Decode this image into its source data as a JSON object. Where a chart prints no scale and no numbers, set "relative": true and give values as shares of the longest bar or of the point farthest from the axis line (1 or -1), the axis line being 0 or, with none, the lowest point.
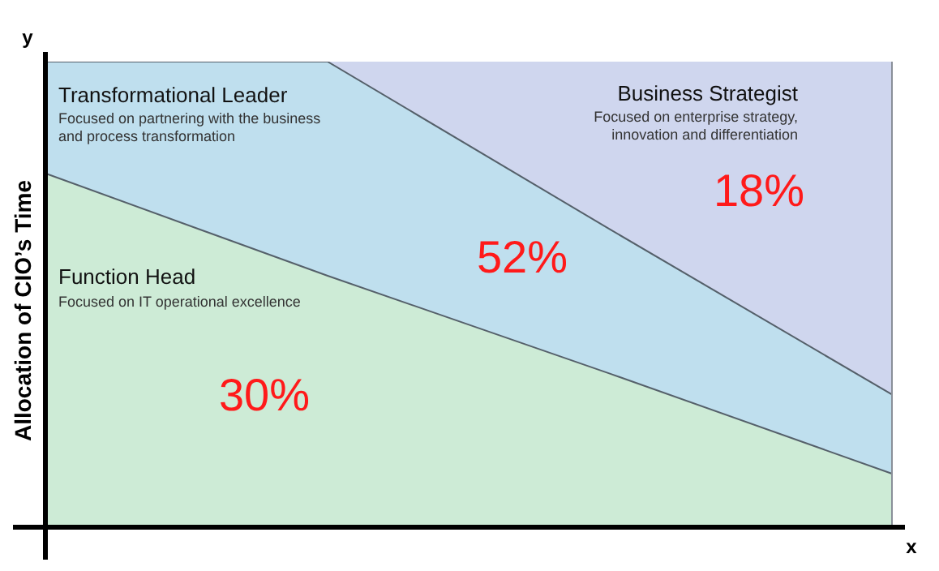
{
  "chart_data": {
    "type": "area",
    "relative": true,
    "stacked": true,
    "xlabel": "x",
    "ylabel": "Allocation of CIO’s Time",
    "categories": [
      null,
      null,
      null,
      null
    ],
    "series": [
      {
        "name": "Function Head",
        "color": "#cdebd6",
        "values": [
          0.76,
          0.54,
          0.33,
          0.115
        ]
      },
      {
        "name": "Transformational Leader",
        "color": "#bfdfee",
        "values": [
          0.24,
          0.46,
          0.31,
          0.17
        ]
      },
      {
        "name": "Business Strategist",
        "color": "#cfd6ee",
        "values": [
          0,
          0,
          0.36,
          0.715
        ]
      }
    ],
    "annotations": [
      "Focused on IT operational excellence",
      "Focused on partnering with the business\nand process transformation",
      "Focused on enterprise strategy,\ninnovation and differentiation",
      "30%",
      "52%",
      "18%",
      "y"
    ]
  }
}
